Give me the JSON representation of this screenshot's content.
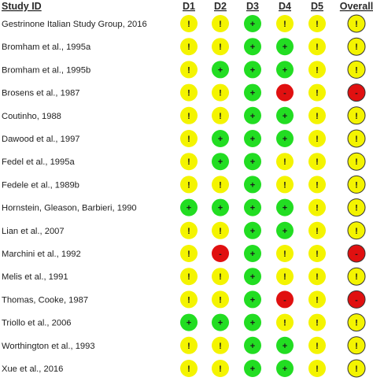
{
  "headers": {
    "study": "Study ID",
    "domains": [
      "D1",
      "D2",
      "D3",
      "D4",
      "D5",
      "Overall"
    ]
  },
  "judgement_symbols": {
    "low": "+",
    "some_concerns": "!",
    "high": "-"
  },
  "judgement_colors": {
    "low": "#22dd22",
    "some_concerns": "#f4f400",
    "high": "#e01010"
  },
  "rows": [
    {
      "study": "Gestrinone Italian Study Group, 2016",
      "judgements": [
        "some_concerns",
        "some_concerns",
        "low",
        "some_concerns",
        "some_concerns",
        "some_concerns"
      ]
    },
    {
      "study": "Bromham et al., 1995a",
      "judgements": [
        "some_concerns",
        "some_concerns",
        "low",
        "low",
        "some_concerns",
        "some_concerns"
      ]
    },
    {
      "study": "Bromham et al., 1995b",
      "judgements": [
        "some_concerns",
        "low",
        "low",
        "low",
        "some_concerns",
        "some_concerns"
      ]
    },
    {
      "study": "Brosens et al., 1987",
      "judgements": [
        "some_concerns",
        "some_concerns",
        "low",
        "high",
        "some_concerns",
        "high"
      ]
    },
    {
      "study": "Coutinho, 1988",
      "judgements": [
        "some_concerns",
        "some_concerns",
        "low",
        "low",
        "some_concerns",
        "some_concerns"
      ]
    },
    {
      "study": "Dawood et al., 1997",
      "judgements": [
        "some_concerns",
        "low",
        "low",
        "low",
        "some_concerns",
        "some_concerns"
      ]
    },
    {
      "study": "Fedel et al., 1995a",
      "judgements": [
        "some_concerns",
        "low",
        "low",
        "some_concerns",
        "some_concerns",
        "some_concerns"
      ]
    },
    {
      "study": "Fedele et al., 1989b",
      "judgements": [
        "some_concerns",
        "some_concerns",
        "low",
        "some_concerns",
        "some_concerns",
        "some_concerns"
      ]
    },
    {
      "study": "Hornstein, Gleason, Barbieri, 1990",
      "judgements": [
        "low",
        "low",
        "low",
        "low",
        "some_concerns",
        "some_concerns"
      ]
    },
    {
      "study": "Lian et al., 2007",
      "judgements": [
        "some_concerns",
        "some_concerns",
        "low",
        "low",
        "some_concerns",
        "some_concerns"
      ]
    },
    {
      "study": "Marchini et al., 1992",
      "judgements": [
        "some_concerns",
        "high",
        "low",
        "some_concerns",
        "some_concerns",
        "high"
      ]
    },
    {
      "study": "Melis et al., 1991",
      "judgements": [
        "some_concerns",
        "some_concerns",
        "low",
        "some_concerns",
        "some_concerns",
        "some_concerns"
      ]
    },
    {
      "study": "Thomas, Cooke, 1987",
      "judgements": [
        "some_concerns",
        "some_concerns",
        "low",
        "high",
        "some_concerns",
        "high"
      ]
    },
    {
      "study": "Triollo et al., 2006",
      "judgements": [
        "low",
        "low",
        "low",
        "some_concerns",
        "some_concerns",
        "some_concerns"
      ]
    },
    {
      "study": "Worthington et al., 1993",
      "judgements": [
        "some_concerns",
        "some_concerns",
        "low",
        "low",
        "some_concerns",
        "some_concerns"
      ]
    },
    {
      "study": "Xue et al., 2016",
      "judgements": [
        "some_concerns",
        "some_concerns",
        "low",
        "low",
        "some_concerns",
        "some_concerns"
      ]
    }
  ]
}
